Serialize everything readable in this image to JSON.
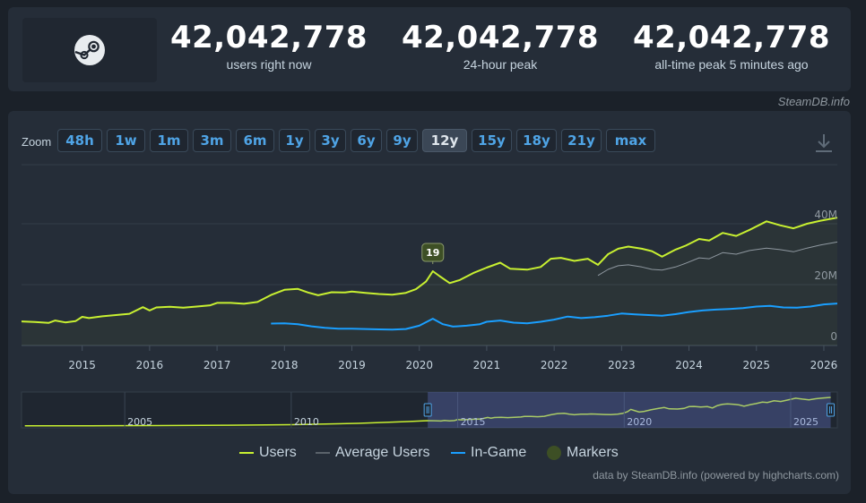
{
  "stats": [
    {
      "value": "42,042,778",
      "label": "users right now"
    },
    {
      "value": "42,042,778",
      "label": "24-hour peak"
    },
    {
      "value": "42,042,778",
      "label": "all-time peak 5 minutes ago"
    }
  ],
  "logo_icon": "steam-logo-icon",
  "credit_top": "SteamDB.info",
  "zoom": {
    "label": "Zoom",
    "options": [
      "48h",
      "1w",
      "1m",
      "3m",
      "6m",
      "1y",
      "3y",
      "6y",
      "9y",
      "12y",
      "15y",
      "18y",
      "21y",
      "max"
    ],
    "active": "12y"
  },
  "download_icon": "download-icon",
  "chart_data": {
    "type": "line",
    "x_unit": "year",
    "xlim": [
      2014.1,
      2026.2
    ],
    "ylim": [
      0,
      40000000
    ],
    "y_ticks": [
      {
        "value": 0,
        "label": "0"
      },
      {
        "value": 20000000,
        "label": "20M"
      },
      {
        "value": 40000000,
        "label": "40M"
      }
    ],
    "x_ticks": [
      "2015",
      "2016",
      "2017",
      "2018",
      "2019",
      "2020",
      "2021",
      "2022",
      "2023",
      "2024",
      "2025",
      "2026"
    ],
    "grid": true,
    "series": [
      {
        "name": "Users",
        "color": "#c8f031",
        "points": [
          [
            2014.1,
            7.9
          ],
          [
            2014.3,
            7.7
          ],
          [
            2014.5,
            7.4
          ],
          [
            2014.6,
            8.2
          ],
          [
            2014.75,
            7.6
          ],
          [
            2014.9,
            8.0
          ],
          [
            2015.0,
            9.4
          ],
          [
            2015.1,
            9.0
          ],
          [
            2015.3,
            9.6
          ],
          [
            2015.5,
            10.0
          ],
          [
            2015.7,
            10.4
          ],
          [
            2015.9,
            12.6
          ],
          [
            2016.0,
            11.5
          ],
          [
            2016.1,
            12.5
          ],
          [
            2016.3,
            12.7
          ],
          [
            2016.5,
            12.4
          ],
          [
            2016.7,
            12.8
          ],
          [
            2016.9,
            13.2
          ],
          [
            2017.0,
            14.0
          ],
          [
            2017.2,
            14.0
          ],
          [
            2017.4,
            13.7
          ],
          [
            2017.6,
            14.3
          ],
          [
            2017.8,
            16.6
          ],
          [
            2018.0,
            18.3
          ],
          [
            2018.2,
            18.6
          ],
          [
            2018.35,
            17.4
          ],
          [
            2018.5,
            16.5
          ],
          [
            2018.7,
            17.5
          ],
          [
            2018.9,
            17.4
          ],
          [
            2019.0,
            17.7
          ],
          [
            2019.2,
            17.3
          ],
          [
            2019.4,
            16.9
          ],
          [
            2019.6,
            16.7
          ],
          [
            2019.8,
            17.3
          ],
          [
            2019.95,
            18.5
          ],
          [
            2020.1,
            21.0
          ],
          [
            2020.2,
            24.4
          ],
          [
            2020.3,
            22.8
          ],
          [
            2020.45,
            20.5
          ],
          [
            2020.6,
            21.5
          ],
          [
            2020.8,
            23.8
          ],
          [
            2021.0,
            25.6
          ],
          [
            2021.2,
            27.2
          ],
          [
            2021.35,
            25.2
          ],
          [
            2021.6,
            24.9
          ],
          [
            2021.8,
            25.8
          ],
          [
            2021.95,
            28.5
          ],
          [
            2022.1,
            28.8
          ],
          [
            2022.3,
            27.8
          ],
          [
            2022.5,
            28.5
          ],
          [
            2022.65,
            26.5
          ],
          [
            2022.8,
            30.0
          ],
          [
            2022.95,
            31.8
          ],
          [
            2023.1,
            32.5
          ],
          [
            2023.3,
            31.8
          ],
          [
            2023.45,
            31.0
          ],
          [
            2023.6,
            29.2
          ],
          [
            2023.8,
            31.5
          ],
          [
            2023.95,
            32.8
          ],
          [
            2024.15,
            35.0
          ],
          [
            2024.3,
            34.5
          ],
          [
            2024.5,
            37.0
          ],
          [
            2024.7,
            36.0
          ],
          [
            2024.9,
            38.0
          ],
          [
            2025.15,
            40.8
          ],
          [
            2025.35,
            39.5
          ],
          [
            2025.55,
            38.5
          ],
          [
            2025.75,
            40.0
          ],
          [
            2025.95,
            41.0
          ],
          [
            2026.2,
            42.0
          ]
        ]
      },
      {
        "name": "Average Users",
        "color": "#8f98a0",
        "points": [
          [
            2022.65,
            23.0
          ],
          [
            2022.8,
            25.0
          ],
          [
            2022.95,
            26.2
          ],
          [
            2023.1,
            26.5
          ],
          [
            2023.3,
            25.8
          ],
          [
            2023.45,
            25.0
          ],
          [
            2023.6,
            24.8
          ],
          [
            2023.8,
            25.8
          ],
          [
            2023.95,
            27.0
          ],
          [
            2024.15,
            28.8
          ],
          [
            2024.3,
            28.5
          ],
          [
            2024.5,
            30.5
          ],
          [
            2024.7,
            30.0
          ],
          [
            2024.9,
            31.2
          ],
          [
            2025.15,
            32.0
          ],
          [
            2025.35,
            31.5
          ],
          [
            2025.55,
            30.8
          ],
          [
            2025.75,
            32.0
          ],
          [
            2025.95,
            33.0
          ],
          [
            2026.2,
            34.0
          ]
        ]
      },
      {
        "name": "In-Game",
        "color": "#1a9fff",
        "points": [
          [
            2017.8,
            7.2
          ],
          [
            2018.0,
            7.3
          ],
          [
            2018.2,
            7.0
          ],
          [
            2018.4,
            6.3
          ],
          [
            2018.6,
            5.8
          ],
          [
            2018.8,
            5.5
          ],
          [
            2019.0,
            5.5
          ],
          [
            2019.2,
            5.4
          ],
          [
            2019.4,
            5.3
          ],
          [
            2019.6,
            5.2
          ],
          [
            2019.8,
            5.4
          ],
          [
            2020.0,
            6.5
          ],
          [
            2020.2,
            8.8
          ],
          [
            2020.35,
            7.0
          ],
          [
            2020.5,
            6.2
          ],
          [
            2020.7,
            6.5
          ],
          [
            2020.9,
            7.0
          ],
          [
            2021.0,
            7.8
          ],
          [
            2021.2,
            8.2
          ],
          [
            2021.4,
            7.5
          ],
          [
            2021.6,
            7.3
          ],
          [
            2021.8,
            7.8
          ],
          [
            2022.0,
            8.5
          ],
          [
            2022.2,
            9.5
          ],
          [
            2022.4,
            9.0
          ],
          [
            2022.6,
            9.3
          ],
          [
            2022.8,
            9.8
          ],
          [
            2023.0,
            10.5
          ],
          [
            2023.2,
            10.2
          ],
          [
            2023.4,
            10.0
          ],
          [
            2023.6,
            9.8
          ],
          [
            2023.8,
            10.3
          ],
          [
            2024.0,
            11.0
          ],
          [
            2024.2,
            11.5
          ],
          [
            2024.4,
            11.8
          ],
          [
            2024.6,
            12.0
          ],
          [
            2024.8,
            12.3
          ],
          [
            2025.0,
            12.8
          ],
          [
            2025.2,
            13.0
          ],
          [
            2025.4,
            12.5
          ],
          [
            2025.6,
            12.4
          ],
          [
            2025.8,
            12.8
          ],
          [
            2026.0,
            13.5
          ],
          [
            2026.2,
            13.8
          ]
        ]
      }
    ],
    "markers": [
      {
        "x": 2020.2,
        "y": 24.4,
        "label": "19"
      }
    ],
    "navigator": {
      "x_ticks": [
        "2005",
        "2010",
        "2015",
        "2020",
        "2025"
      ],
      "selection": [
        2014.1,
        2026.2
      ]
    },
    "legend": {
      "placement": "bottom",
      "items": [
        {
          "name": "Users",
          "color": "#c8f031",
          "kind": "line"
        },
        {
          "name": "Average Users",
          "color": "#5b636b",
          "kind": "line"
        },
        {
          "name": "In-Game",
          "color": "#1a9fff",
          "kind": "line"
        },
        {
          "name": "Markers",
          "color": "#3d4f25",
          "kind": "dot"
        }
      ]
    }
  },
  "credit_bottom": "data by SteamDB.info (powered by highcharts.com)"
}
